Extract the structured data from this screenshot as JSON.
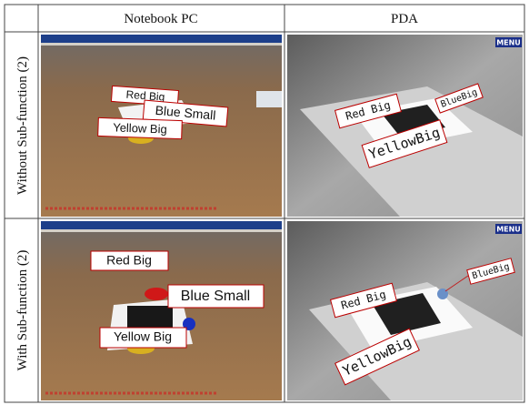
{
  "table": {
    "columns": [
      "Notebook PC",
      "PDA"
    ],
    "rows": [
      {
        "label": "Without Sub-function (2)",
        "cells": [
          {
            "labels": [
              "Red Big",
              "Blue Small",
              "Yellow Big"
            ]
          },
          {
            "menu": "MENU",
            "labels": [
              "Red Big",
              "BlueBig",
              "YellowBig"
            ]
          }
        ]
      },
      {
        "label": "With Sub-function (2)",
        "cells": [
          {
            "labels": [
              "Red Big",
              "Blue Small",
              "Yellow Big"
            ]
          },
          {
            "menu": "MENU",
            "labels": [
              "Red Big",
              "BlueBig",
              "YellowBig"
            ]
          }
        ]
      }
    ]
  }
}
